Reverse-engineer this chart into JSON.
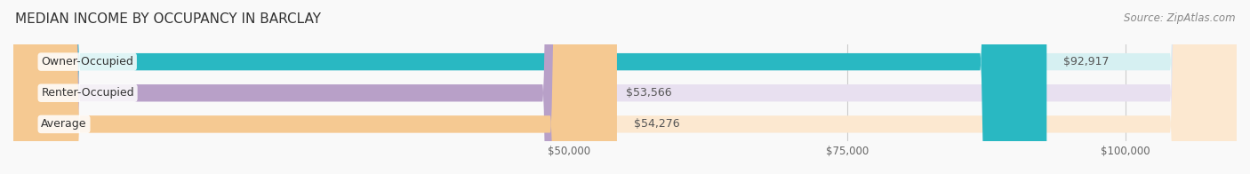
{
  "title": "MEDIAN INCOME BY OCCUPANCY IN BARCLAY",
  "source": "Source: ZipAtlas.com",
  "categories": [
    "Owner-Occupied",
    "Renter-Occupied",
    "Average"
  ],
  "values": [
    92917,
    53566,
    54276
  ],
  "bar_colors": [
    "#29b8c2",
    "#b8a0c8",
    "#f5c992"
  ],
  "bar_bg_colors": [
    "#d6f0f2",
    "#e8e0f0",
    "#fce8d0"
  ],
  "label_colors": [
    "#29b8c2",
    "#b8a0c8",
    "#f5c992"
  ],
  "value_labels": [
    "$92,917",
    "$53,566",
    "$54,276"
  ],
  "xlim": [
    0,
    110000
  ],
  "xticks": [
    50000,
    75000,
    100000
  ],
  "xticklabels": [
    "$50,000",
    "$75,000",
    "$100,000"
  ],
  "background_color": "#f9f9f9",
  "bar_height": 0.55,
  "title_fontsize": 11,
  "source_fontsize": 8.5,
  "label_fontsize": 9,
  "value_fontsize": 9
}
